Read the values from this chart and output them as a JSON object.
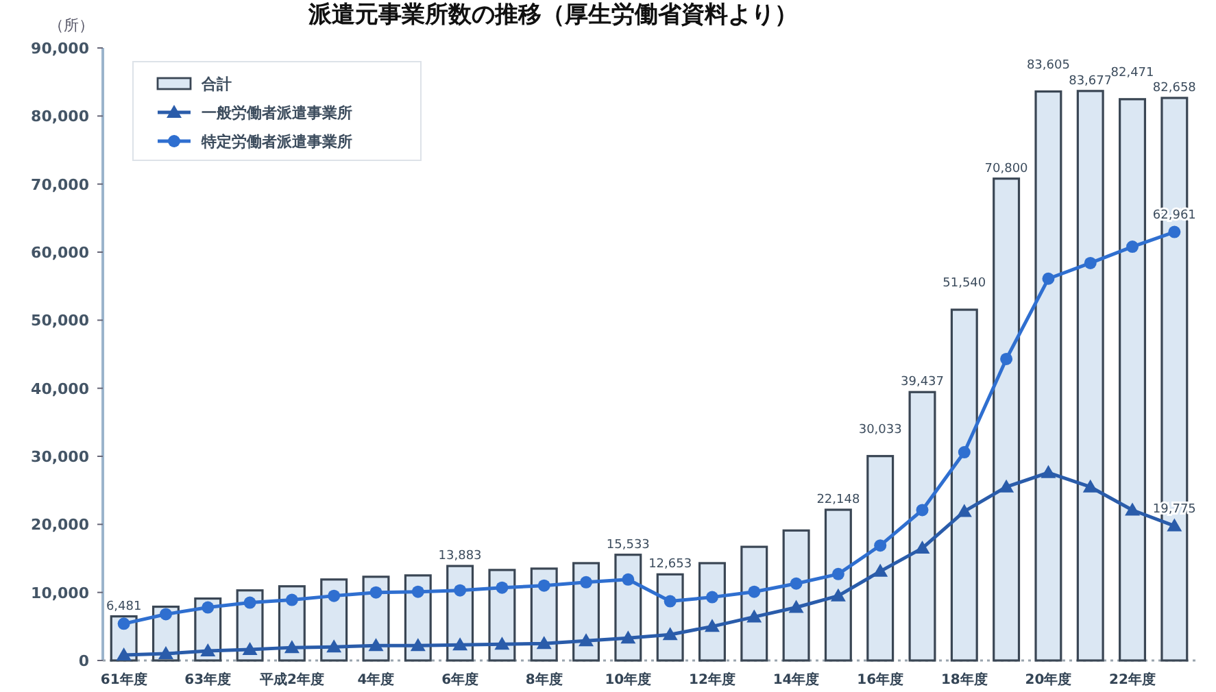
{
  "chart_data": {
    "type": "bar",
    "title": "派遣元事業所数の推移（厚生労働省資料より）",
    "ylabel": "（所）",
    "categories": [
      "61年度",
      null,
      "63年度",
      null,
      "平成2年度",
      null,
      "4年度",
      null,
      "6年度",
      null,
      "8年度",
      null,
      "10年度",
      null,
      "12年度",
      null,
      "14年度",
      null,
      "16年度",
      null,
      "18年度",
      null,
      "20年度",
      null,
      "22年度",
      null
    ],
    "ylim": [
      0,
      90000
    ],
    "yticks": [
      {
        "value": 0,
        "label": "0"
      },
      {
        "value": 10000,
        "label": "10,000"
      },
      {
        "value": 20000,
        "label": "20,000"
      },
      {
        "value": 30000,
        "label": "30,000"
      },
      {
        "value": 40000,
        "label": "40,000"
      },
      {
        "value": 50000,
        "label": "50,000"
      },
      {
        "value": 60000,
        "label": "60,000"
      },
      {
        "value": 70000,
        "label": "70,000"
      },
      {
        "value": 80000,
        "label": "80,000"
      },
      {
        "value": 90000,
        "label": "90,000"
      }
    ],
    "legend": "top left",
    "series": [
      {
        "name": "合計",
        "color": "#dbe7f3",
        "values": [
          6481,
          7900,
          9100,
          10300,
          10900,
          11900,
          12300,
          12500,
          13883,
          13300,
          13500,
          14300,
          15533,
          12653,
          14300,
          16700,
          19100,
          22148,
          30033,
          39437,
          51540,
          70800,
          83605,
          83677,
          82471,
          82658
        ],
        "value_labels": [
          "6,481",
          null,
          null,
          null,
          null,
          null,
          null,
          null,
          "13,883",
          null,
          null,
          null,
          "15,533",
          "12,653",
          null,
          null,
          null,
          "22,148",
          "30,033",
          "39,437",
          "51,540",
          "70,800",
          "83,605",
          "83,677",
          "82,471",
          "82,658"
        ]
      },
      {
        "name": "一般労働者派遣事業所",
        "type": "line",
        "marker": "triangle",
        "color": "#2a5caa",
        "values": [
          800,
          1000,
          1400,
          1600,
          1900,
          2000,
          2200,
          2200,
          2300,
          2400,
          2500,
          2900,
          3300,
          3800,
          5000,
          6400,
          7800,
          9500,
          13100,
          16500,
          21900,
          25500,
          27600,
          25500,
          22100,
          19775
        ],
        "value_labels": [
          null,
          null,
          null,
          null,
          null,
          null,
          null,
          null,
          null,
          null,
          null,
          null,
          null,
          null,
          null,
          null,
          null,
          null,
          null,
          null,
          null,
          null,
          null,
          null,
          null,
          "19,775"
        ]
      },
      {
        "name": "特定労働者派遣事業所",
        "type": "line",
        "marker": "circle",
        "color": "#2f6fd0",
        "values": [
          5400,
          6800,
          7800,
          8500,
          8900,
          9500,
          10000,
          10100,
          10300,
          10700,
          11000,
          11500,
          11900,
          8700,
          9300,
          10100,
          11300,
          12700,
          16900,
          22100,
          30600,
          44300,
          56100,
          58400,
          60800,
          62961
        ],
        "value_labels": [
          null,
          null,
          null,
          null,
          null,
          null,
          null,
          null,
          null,
          null,
          null,
          null,
          null,
          null,
          null,
          null,
          null,
          null,
          null,
          null,
          null,
          null,
          null,
          null,
          null,
          "62,961"
        ]
      }
    ]
  }
}
